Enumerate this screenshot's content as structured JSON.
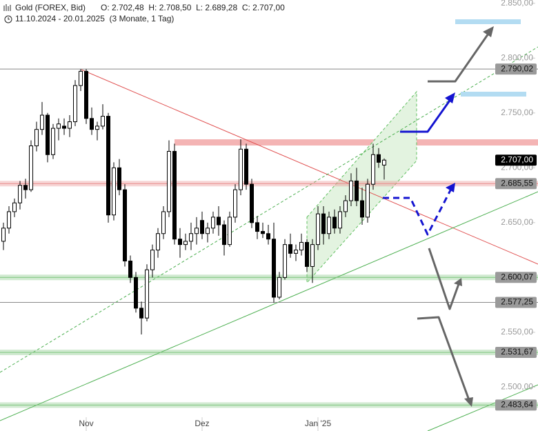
{
  "chart_data": {
    "type": "candlestick",
    "title": "Gold (FOREX, Bid)",
    "ohlc_text": "O: 2.702,48  H: 2.708,50  L: 2.689,28  C: 2.707,00",
    "subtitle": "11.10.2024 - 20.01.2025  (3 Monate, 1 Tag)",
    "categories": [
      null,
      null,
      null,
      null,
      null,
      null,
      null,
      null,
      null,
      null,
      null,
      null,
      null,
      null,
      null,
      "Nov",
      null,
      null,
      null,
      null,
      null,
      null,
      null,
      null,
      null,
      null,
      null,
      null,
      null,
      null,
      null,
      null,
      null,
      null,
      null,
      null,
      "Dez",
      null,
      null,
      null,
      null,
      null,
      null,
      null,
      null,
      null,
      null,
      null,
      null,
      null,
      null,
      null,
      null,
      null,
      null,
      null,
      null,
      "Jan '25",
      null,
      null,
      null,
      null,
      null,
      null,
      null,
      null,
      null,
      null,
      null,
      null
    ],
    "open": [
      2633,
      2645,
      2660,
      2668,
      2684,
      2680,
      2720,
      2735,
      2748,
      2712,
      2736,
      2738,
      2736,
      2742,
      2775,
      2788,
      2745,
      2735,
      2738,
      2747,
      2657,
      2700,
      2680,
      2615,
      2600,
      2572,
      2563,
      2607,
      2625,
      2640,
      2660,
      2715,
      2635,
      2630,
      2633,
      2640,
      2652,
      2640,
      2645,
      2655,
      2648,
      2630,
      2655,
      2680,
      2717,
      2685,
      2650,
      2642,
      2640,
      2635,
      2582,
      2600,
      2630,
      2622,
      2625,
      2632,
      2610,
      2630,
      2658,
      2640,
      2655,
      2645,
      2660,
      2670,
      2688,
      2670,
      2655,
      2685,
      2712,
      2702.48
    ],
    "high": [
      2650,
      2665,
      2672,
      2688,
      2690,
      2725,
      2742,
      2760,
      2750,
      2740,
      2745,
      2745,
      2748,
      2780,
      2790,
      2790,
      2755,
      2742,
      2758,
      2750,
      2705,
      2708,
      2685,
      2620,
      2605,
      2578,
      2612,
      2630,
      2645,
      2665,
      2725,
      2722,
      2645,
      2640,
      2650,
      2655,
      2660,
      2650,
      2660,
      2665,
      2652,
      2660,
      2685,
      2726,
      2722,
      2690,
      2656,
      2650,
      2648,
      2650,
      2605,
      2635,
      2640,
      2630,
      2640,
      2635,
      2635,
      2665,
      2665,
      2660,
      2662,
      2665,
      2675,
      2695,
      2700,
      2682,
      2690,
      2722,
      2718,
      2708.5
    ],
    "low": [
      2625,
      2640,
      2655,
      2662,
      2672,
      2678,
      2715,
      2730,
      2705,
      2708,
      2725,
      2730,
      2728,
      2738,
      2770,
      2740,
      2730,
      2725,
      2735,
      2650,
      2652,
      2675,
      2610,
      2595,
      2568,
      2548,
      2560,
      2600,
      2618,
      2635,
      2655,
      2630,
      2618,
      2625,
      2625,
      2630,
      2635,
      2632,
      2640,
      2638,
      2620,
      2628,
      2650,
      2675,
      2680,
      2645,
      2635,
      2636,
      2630,
      2577,
      2580,
      2598,
      2618,
      2615,
      2620,
      2605,
      2595,
      2625,
      2630,
      2635,
      2640,
      2640,
      2655,
      2665,
      2665,
      2648,
      2650,
      2680,
      2700,
      2689.28
    ],
    "close": [
      2645,
      2660,
      2668,
      2684,
      2680,
      2720,
      2735,
      2748,
      2712,
      2736,
      2740,
      2736,
      2742,
      2775,
      2788,
      2745,
      2735,
      2738,
      2747,
      2657,
      2700,
      2680,
      2615,
      2600,
      2572,
      2563,
      2607,
      2625,
      2640,
      2660,
      2715,
      2635,
      2630,
      2633,
      2640,
      2645,
      2640,
      2645,
      2655,
      2648,
      2630,
      2655,
      2680,
      2717,
      2685,
      2650,
      2642,
      2640,
      2635,
      2582,
      2600,
      2630,
      2622,
      2625,
      2632,
      2610,
      2630,
      2658,
      2640,
      2655,
      2645,
      2660,
      2670,
      2688,
      2670,
      2655,
      2685,
      2712,
      2705,
      2707.0
    ],
    "ylim": [
      2460,
      2853
    ],
    "yticks": [
      {
        "value": 2500,
        "label": "2.500,00"
      },
      {
        "value": 2550,
        "label": "2.550,00"
      },
      {
        "value": 2600,
        "label": "2.600,00"
      },
      {
        "value": 2650,
        "label": "2.650,00"
      },
      {
        "value": 2700,
        "label": "2.700,00"
      },
      {
        "value": 2750,
        "label": "2.750,00"
      },
      {
        "value": 2800,
        "label": "2.800,00"
      },
      {
        "value": 2850,
        "label": "2.850,00"
      }
    ],
    "levels": [
      {
        "value": 2790.02,
        "label": "2.790,02",
        "color": "#888888",
        "band": false
      },
      {
        "value": 2707.0,
        "label": "2.707,00",
        "color": "#000000",
        "band": false
      },
      {
        "value": 2685.55,
        "label": "2.685,55",
        "color": "#e88a8a",
        "band": true
      },
      {
        "value": 2600.07,
        "label": "2.600,07",
        "color": "#7cc47c",
        "band": true
      },
      {
        "value": 2577.25,
        "label": "2.577,25",
        "color": "#888888",
        "band": false
      },
      {
        "value": 2531.67,
        "label": "2.531,67",
        "color": "#7cc47c",
        "band": true
      },
      {
        "value": 2483.64,
        "label": "2.483,64",
        "color": "#7cc47c",
        "band": true
      }
    ],
    "up_color": "#ffffff",
    "down_color": "#000000"
  }
}
